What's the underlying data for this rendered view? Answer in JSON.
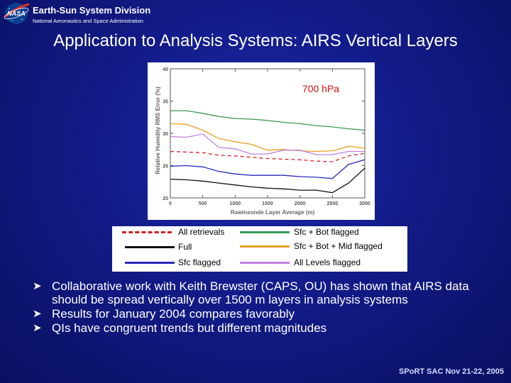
{
  "header": {
    "division": "Earth-Sun System Division",
    "agency": "National Aeronautics and Space Administration",
    "logo_text": "NASA"
  },
  "slide": {
    "title": "Application to Analysis Systems:  AIRS Vertical Layers"
  },
  "chart_data": {
    "type": "line",
    "annotation": "700 hPa",
    "xlabel": "Rawinsonde Layer Average (m)",
    "ylabel": "Relative Humidity RMS Error (%)",
    "xlim": [
      0,
      3000
    ],
    "ylim": [
      20,
      40
    ],
    "x_ticks": [
      0,
      500,
      1000,
      1500,
      2000,
      2500,
      3000
    ],
    "y_ticks": [
      20,
      25,
      30,
      35,
      40
    ],
    "x": [
      0,
      250,
      500,
      750,
      1000,
      1250,
      1500,
      1750,
      2000,
      2250,
      2500,
      2750,
      3000
    ],
    "series": [
      {
        "name": "Sfc + Bot flagged",
        "color": "#3a9a56",
        "dash": "",
        "values": [
          33.5,
          33.5,
          33.1,
          32.6,
          32.3,
          32.2,
          32.0,
          31.7,
          31.5,
          31.2,
          31.0,
          30.7,
          30.5
        ]
      },
      {
        "name": "Sfc + Bot + Mid flagged",
        "color": "#e8a020",
        "dash": "",
        "values": [
          31.5,
          31.4,
          30.5,
          29.2,
          28.7,
          28.3,
          27.4,
          27.5,
          27.3,
          27.2,
          27.3,
          28.0,
          27.7
        ]
      },
      {
        "name": "All Levels flagged",
        "color": "#c080e0",
        "dash": "",
        "values": [
          29.5,
          29.4,
          29.9,
          27.8,
          27.6,
          26.8,
          26.8,
          27.4,
          27.4,
          26.7,
          26.7,
          27.2,
          27.2
        ]
      },
      {
        "name": "All retrievals",
        "color": "#d02020",
        "dash": "5,4",
        "values": [
          27.2,
          27.1,
          27.0,
          26.6,
          26.5,
          26.3,
          26.1,
          26.0,
          25.9,
          25.7,
          25.6,
          26.5,
          26.9
        ]
      },
      {
        "name": "Sfc flagged",
        "color": "#2a2ab8",
        "dash": "",
        "values": [
          24.9,
          25.0,
          24.8,
          24.1,
          23.7,
          23.5,
          23.5,
          23.5,
          23.3,
          23.2,
          23.0,
          25.2,
          25.9
        ]
      },
      {
        "name": "Full",
        "color": "#111111",
        "dash": "",
        "values": [
          22.9,
          22.8,
          22.6,
          22.3,
          22.0,
          21.7,
          21.5,
          21.4,
          21.2,
          21.2,
          20.8,
          22.3,
          24.6
        ]
      }
    ]
  },
  "legend": {
    "entries": [
      {
        "label": "All retrievals",
        "color": "#d02020",
        "style": "dashed"
      },
      {
        "label": "Full",
        "color": "#111111",
        "style": "solid"
      },
      {
        "label": "Sfc flagged",
        "color": "#2a2ab8",
        "style": "solid"
      },
      {
        "label": "Sfc + Bot flagged",
        "color": "#3a9a56",
        "style": "solid"
      },
      {
        "label": "Sfc + Bot + Mid flagged",
        "color": "#e8a020",
        "style": "solid"
      },
      {
        "label": "All Levels flagged",
        "color": "#c080e0",
        "style": "solid"
      }
    ]
  },
  "bullets": [
    "Collaborative work with Keith Brewster (CAPS, OU) has shown that AIRS data should be spread vertically over 1500 m layers in analysis systems",
    "Results for January 2004 compares favorably",
    "QIs have congruent trends but different magnitudes"
  ],
  "footer": "SPoRT SAC Nov 21-22, 2005"
}
